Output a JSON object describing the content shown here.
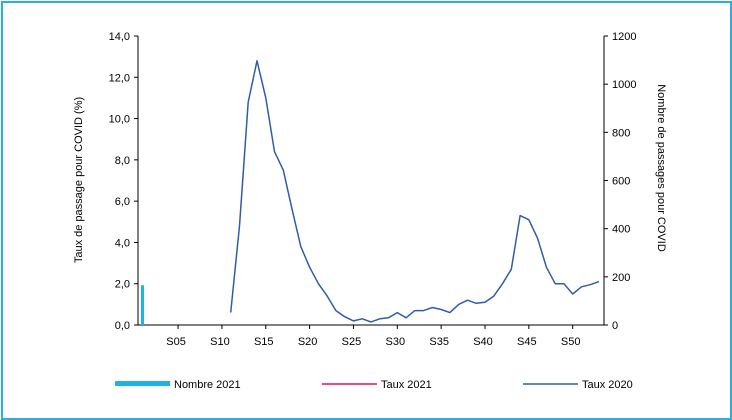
{
  "chart_data": {
    "type": "line",
    "title": "",
    "left_axis": {
      "label": "Taux de passage pour COVID (%)",
      "ylim": [
        0,
        14
      ],
      "ticks": [
        "0,0",
        "2,0",
        "4,0",
        "6,0",
        "8,0",
        "10,0",
        "12,0",
        "14,0"
      ]
    },
    "right_axis": {
      "label": "Nombre de passages pour COVID",
      "ylim": [
        0,
        1200
      ],
      "ticks": [
        "0",
        "200",
        "400",
        "600",
        "800",
        "1000",
        "1200"
      ]
    },
    "x_axis": {
      "weeks": [
        1,
        53
      ],
      "ticks": [
        "S05",
        "S10",
        "S15",
        "S20",
        "S25",
        "S30",
        "S35",
        "S40",
        "S45",
        "S50"
      ],
      "tick_weeks": [
        5,
        10,
        15,
        20,
        25,
        30,
        35,
        40,
        45,
        50
      ]
    },
    "series": [
      {
        "name": "Nombre 2021",
        "type": "bar",
        "axis": "right",
        "color": "#1fb3e0",
        "x": [
          1
        ],
        "values": [
          165
        ]
      },
      {
        "name": "Taux 2021",
        "type": "line",
        "axis": "left",
        "color": "#e0105a",
        "x": [],
        "values": []
      },
      {
        "name": "Taux 2020",
        "type": "line",
        "axis": "left",
        "color": "#2f5da8",
        "x": [
          11,
          12,
          13,
          14,
          15,
          16,
          17,
          18,
          19,
          20,
          21,
          22,
          23,
          24,
          25,
          26,
          27,
          28,
          29,
          30,
          31,
          32,
          33,
          34,
          35,
          36,
          37,
          38,
          39,
          40,
          41,
          42,
          43,
          44,
          45,
          46,
          47,
          48,
          49,
          50,
          51,
          52,
          53
        ],
        "values": [
          0.6,
          4.8,
          10.8,
          12.8,
          11.0,
          8.4,
          7.5,
          5.6,
          3.8,
          2.8,
          2.0,
          1.4,
          0.7,
          0.4,
          0.2,
          0.3,
          0.15,
          0.3,
          0.35,
          0.6,
          0.35,
          0.7,
          0.7,
          0.85,
          0.75,
          0.6,
          1.0,
          1.2,
          1.05,
          1.1,
          1.4,
          2.0,
          2.7,
          5.3,
          5.1,
          4.2,
          2.8,
          2.0,
          2.0,
          1.5,
          1.85,
          1.95,
          2.1
        ]
      }
    ],
    "legend_position": "bottom",
    "grid": false
  }
}
